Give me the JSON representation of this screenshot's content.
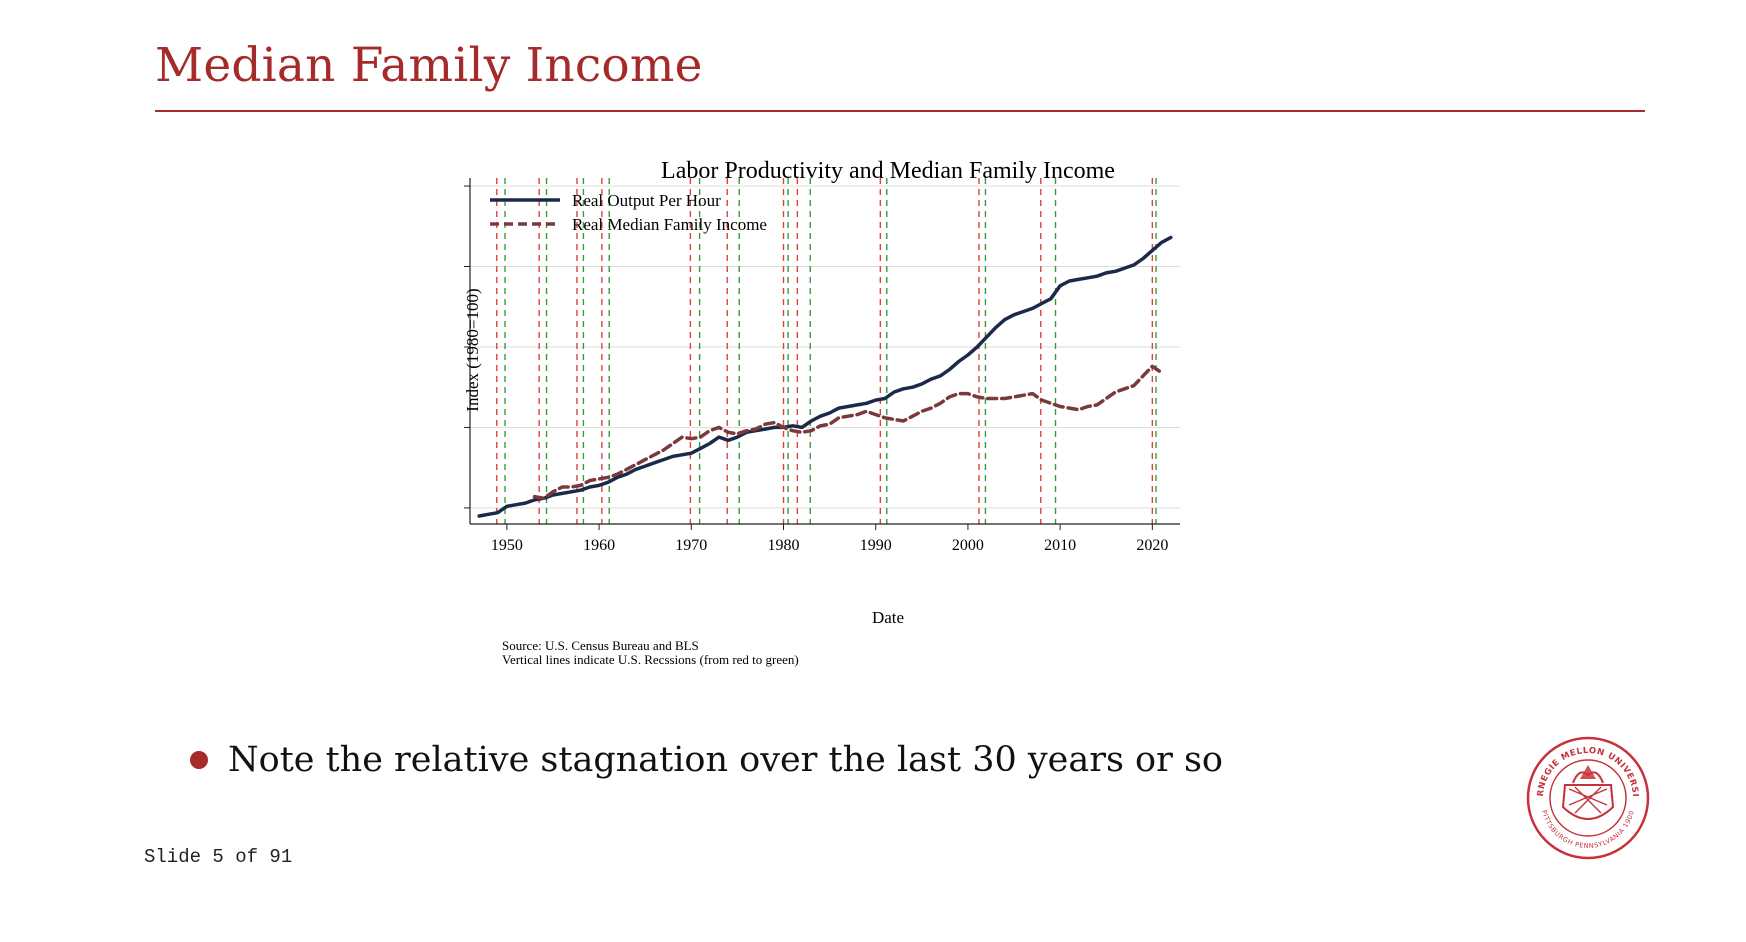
{
  "slide": {
    "title": "Median Family Income",
    "bullet": "Note the relative stagnation over the last 30 years or so",
    "slide_number": "Slide 5 of 91",
    "accent_color": "#a52a2a",
    "seal_lines": {
      "top": "CARNEGIE MELLON UNIVERSITY",
      "bottom": "PITTSBURGH PENNSYLVANIA 1900"
    }
  },
  "chart_data": {
    "type": "line",
    "title": "Labor Productivity and Median Family Income",
    "xlabel": "Date",
    "ylabel": "Index (1980=100)",
    "xlim": [
      1946,
      2023
    ],
    "ylim": [
      40,
      255
    ],
    "xticks": [
      1950,
      1960,
      1970,
      1980,
      1990,
      2000,
      2010,
      2020
    ],
    "yticks": [
      50,
      100,
      150,
      200,
      250
    ],
    "grid": true,
    "legend_position": "top-left",
    "source_note": "Source: U.S. Census Bureau and BLS",
    "recession_note": "Vertical lines indicate U.S. Recssions (from red to green)",
    "recessions": [
      {
        "start": 1948.9,
        "end": 1949.8
      },
      {
        "start": 1953.5,
        "end": 1954.3
      },
      {
        "start": 1957.6,
        "end": 1958.3
      },
      {
        "start": 1960.3,
        "end": 1961.1
      },
      {
        "start": 1969.9,
        "end": 1970.9
      },
      {
        "start": 1973.9,
        "end": 1975.2
      },
      {
        "start": 1980.0,
        "end": 1980.5
      },
      {
        "start": 1981.5,
        "end": 1982.9
      },
      {
        "start": 1990.5,
        "end": 1991.2
      },
      {
        "start": 2001.2,
        "end": 2001.9
      },
      {
        "start": 2007.9,
        "end": 2009.5
      },
      {
        "start": 2020.0,
        "end": 2020.4
      }
    ],
    "series": [
      {
        "name": "Real Output Per Hour",
        "color": "#1c2a4a",
        "style": "solid",
        "points": [
          [
            1947,
            45
          ],
          [
            1948,
            46
          ],
          [
            1949,
            47
          ],
          [
            1950,
            51
          ],
          [
            1951,
            52
          ],
          [
            1952,
            53
          ],
          [
            1953,
            55
          ],
          [
            1954,
            56
          ],
          [
            1955,
            58
          ],
          [
            1956,
            59
          ],
          [
            1957,
            60
          ],
          [
            1958,
            61
          ],
          [
            1959,
            63
          ],
          [
            1960,
            64
          ],
          [
            1961,
            66
          ],
          [
            1962,
            69
          ],
          [
            1963,
            71
          ],
          [
            1964,
            74
          ],
          [
            1965,
            76
          ],
          [
            1966,
            78
          ],
          [
            1967,
            80
          ],
          [
            1968,
            82
          ],
          [
            1969,
            83
          ],
          [
            1970,
            84
          ],
          [
            1971,
            87
          ],
          [
            1972,
            90
          ],
          [
            1973,
            94
          ],
          [
            1974,
            92
          ],
          [
            1975,
            94
          ],
          [
            1976,
            97
          ],
          [
            1977,
            98
          ],
          [
            1978,
            99
          ],
          [
            1979,
            100
          ],
          [
            1980,
            100
          ],
          [
            1981,
            101
          ],
          [
            1982,
            100
          ],
          [
            1983,
            104
          ],
          [
            1984,
            107
          ],
          [
            1985,
            109
          ],
          [
            1986,
            112
          ],
          [
            1987,
            113
          ],
          [
            1988,
            114
          ],
          [
            1989,
            115
          ],
          [
            1990,
            117
          ],
          [
            1991,
            118
          ],
          [
            1992,
            122
          ],
          [
            1993,
            124
          ],
          [
            1994,
            125
          ],
          [
            1995,
            127
          ],
          [
            1996,
            130
          ],
          [
            1997,
            132
          ],
          [
            1998,
            136
          ],
          [
            1999,
            141
          ],
          [
            2000,
            145
          ],
          [
            2001,
            150
          ],
          [
            2002,
            156
          ],
          [
            2003,
            162
          ],
          [
            2004,
            167
          ],
          [
            2005,
            170
          ],
          [
            2006,
            172
          ],
          [
            2007,
            174
          ],
          [
            2008,
            177
          ],
          [
            2009,
            180
          ],
          [
            2010,
            188
          ],
          [
            2011,
            191
          ],
          [
            2012,
            192
          ],
          [
            2013,
            193
          ],
          [
            2014,
            194
          ],
          [
            2015,
            196
          ],
          [
            2016,
            197
          ],
          [
            2017,
            199
          ],
          [
            2018,
            201
          ],
          [
            2019,
            205
          ],
          [
            2020,
            210
          ],
          [
            2021,
            215
          ],
          [
            2022,
            218
          ]
        ]
      },
      {
        "name": "Real Median Family Income",
        "color": "#7a3a3d",
        "style": "dashed",
        "points": [
          [
            1953,
            57
          ],
          [
            1954,
            56
          ],
          [
            1955,
            60
          ],
          [
            1956,
            63
          ],
          [
            1957,
            63
          ],
          [
            1958,
            64
          ],
          [
            1959,
            67
          ],
          [
            1960,
            68
          ],
          [
            1961,
            69
          ],
          [
            1962,
            71
          ],
          [
            1963,
            74
          ],
          [
            1964,
            77
          ],
          [
            1965,
            80
          ],
          [
            1966,
            83
          ],
          [
            1967,
            86
          ],
          [
            1968,
            90
          ],
          [
            1969,
            94
          ],
          [
            1970,
            93
          ],
          [
            1971,
            94
          ],
          [
            1972,
            98
          ],
          [
            1973,
            100
          ],
          [
            1974,
            97
          ],
          [
            1975,
            96
          ],
          [
            1976,
            98
          ],
          [
            1977,
            99
          ],
          [
            1978,
            102
          ],
          [
            1979,
            103
          ],
          [
            1980,
            100
          ],
          [
            1981,
            98
          ],
          [
            1982,
            97
          ],
          [
            1983,
            98
          ],
          [
            1984,
            101
          ],
          [
            1985,
            102
          ],
          [
            1986,
            106
          ],
          [
            1987,
            107
          ],
          [
            1988,
            108
          ],
          [
            1989,
            110
          ],
          [
            1990,
            108
          ],
          [
            1991,
            106
          ],
          [
            1992,
            105
          ],
          [
            1993,
            104
          ],
          [
            1994,
            107
          ],
          [
            1995,
            110
          ],
          [
            1996,
            112
          ],
          [
            1997,
            115
          ],
          [
            1998,
            119
          ],
          [
            1999,
            121
          ],
          [
            2000,
            121
          ],
          [
            2001,
            119
          ],
          [
            2002,
            118
          ],
          [
            2003,
            118
          ],
          [
            2004,
            118
          ],
          [
            2005,
            119
          ],
          [
            2006,
            120
          ],
          [
            2007,
            121
          ],
          [
            2008,
            117
          ],
          [
            2009,
            115
          ],
          [
            2010,
            113
          ],
          [
            2011,
            112
          ],
          [
            2012,
            111
          ],
          [
            2013,
            113
          ],
          [
            2014,
            114
          ],
          [
            2015,
            118
          ],
          [
            2016,
            122
          ],
          [
            2017,
            124
          ],
          [
            2018,
            126
          ],
          [
            2019,
            132
          ],
          [
            2020,
            138
          ],
          [
            2021,
            134
          ]
        ]
      }
    ]
  }
}
